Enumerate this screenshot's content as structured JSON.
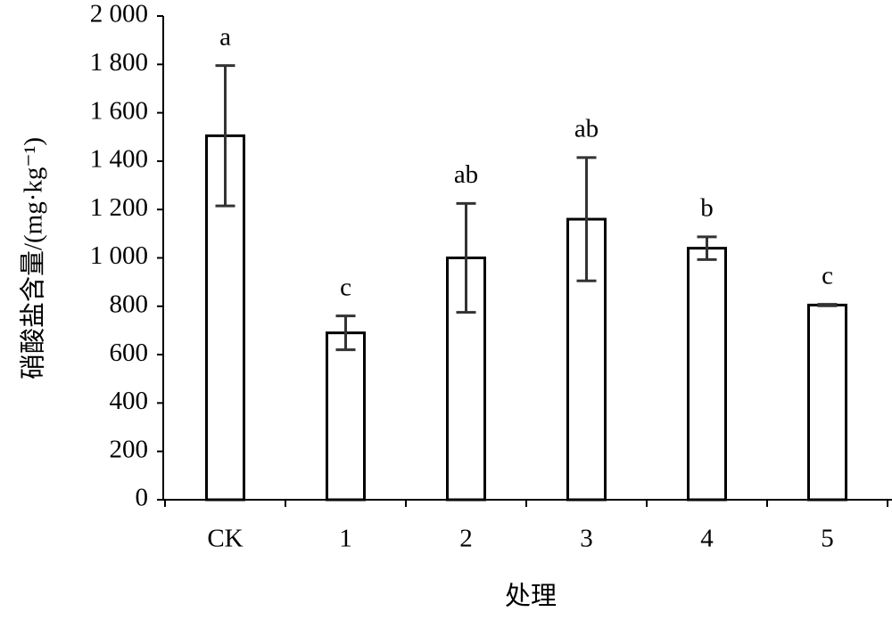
{
  "chart_data": {
    "type": "bar",
    "x_label": "处理",
    "y_label": "硝酸盐含量/(mg·kg⁻¹)",
    "categories": [
      "CK",
      "1",
      "2",
      "3",
      "4",
      "5"
    ],
    "values": [
      1505,
      690,
      1000,
      1160,
      1040,
      805
    ],
    "errors": [
      290,
      70,
      225,
      255,
      47,
      3
    ],
    "letters": [
      "a",
      "c",
      "ab",
      "ab",
      "b",
      "c"
    ],
    "color": "#ffffff",
    "ylim": [
      0,
      2000
    ],
    "yticks": [
      0,
      200,
      400,
      600,
      800,
      {
        "value": 1000,
        "label": "1 000"
      },
      {
        "value": 1200,
        "label": "1 200"
      },
      {
        "value": 1400,
        "label": "1 400"
      },
      {
        "value": 1600,
        "label": "1 600"
      },
      {
        "value": 1800,
        "label": "1 800"
      },
      {
        "value": 2000,
        "label": "2 000"
      }
    ]
  }
}
